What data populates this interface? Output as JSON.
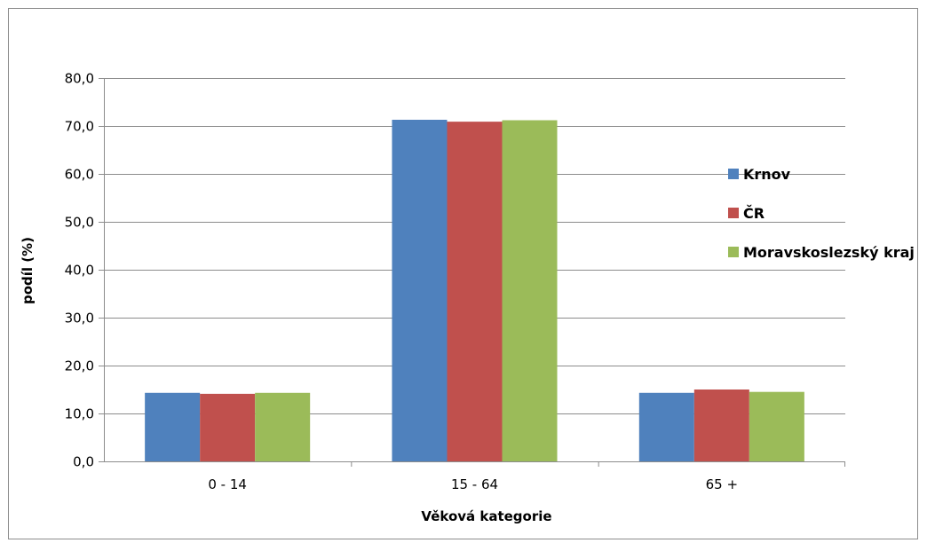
{
  "chart_data": {
    "type": "bar",
    "categories": [
      "0 - 14",
      "15 - 64",
      "65 +"
    ],
    "series": [
      {
        "name": "Krnov",
        "color": "#4F81BD",
        "values": [
          14.3,
          71.3,
          14.3
        ]
      },
      {
        "name": "ČR",
        "color": "#C0504D",
        "values": [
          14.1,
          70.9,
          15.0
        ]
      },
      {
        "name": "Moravskoslezský kraj",
        "color": "#9BBB59",
        "values": [
          14.3,
          71.2,
          14.5
        ]
      }
    ],
    "title": "",
    "xlabel": "Věková kategorie",
    "ylabel": "podíl (%)",
    "ylim": [
      0,
      80
    ],
    "yticks": [
      "0,0",
      "10,0",
      "20,0",
      "30,0",
      "40,0",
      "50,0",
      "60,0",
      "70,0",
      "80,0"
    ],
    "grid": true,
    "legend_position": "right"
  }
}
